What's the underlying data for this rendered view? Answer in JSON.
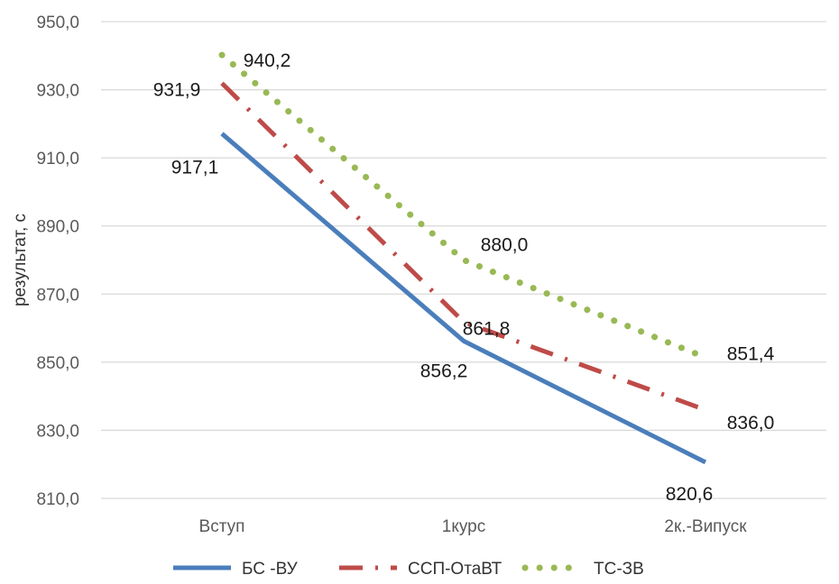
{
  "chart_data": {
    "type": "line",
    "categories": [
      "Вступ",
      "1курс",
      "2к.-Випуск"
    ],
    "ylabel": "результат, с",
    "ylim": [
      810,
      950
    ],
    "ytick_step": 20,
    "yticks": [
      "810,0",
      "830,0",
      "850,0",
      "870,0",
      "890,0",
      "910,0",
      "930,0",
      "950,0"
    ],
    "grid": true,
    "legend_position": "bottom",
    "series": [
      {
        "name": "БС -ВУ",
        "values": [
          917.1,
          856.2,
          820.6
        ],
        "labels": [
          "917,1",
          "856,2",
          "820,6"
        ],
        "color": "#4a7ebb",
        "style": "solid"
      },
      {
        "name": "ССП-ОтаВТ",
        "values": [
          931.9,
          861.8,
          836.0
        ],
        "labels": [
          "931,9",
          "861,8",
          "836,0"
        ],
        "color": "#be4b48",
        "style": "dash-dot"
      },
      {
        "name": "ТС-ЗВ",
        "values": [
          940.2,
          880.0,
          851.4
        ],
        "labels": [
          "940,2",
          "880,0",
          "851,4"
        ],
        "color": "#98b954",
        "style": "dotted"
      }
    ]
  }
}
